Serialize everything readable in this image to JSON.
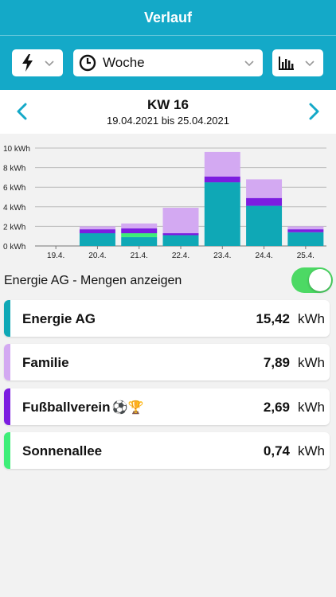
{
  "header": {
    "title": "Verlauf"
  },
  "selectors": {
    "energy_icon": "lightning-icon",
    "period_label": "Woche",
    "period_icon": "clock-icon",
    "chart_icon": "bar-chart-icon"
  },
  "week": {
    "title": "KW 16",
    "range": "19.04.2021 bis 25.04.2021"
  },
  "toggle": {
    "label": "Energie AG - Mengen anzeigen",
    "on": true
  },
  "colors": {
    "accent": "#14a9c8",
    "Energie AG": "#0fa8b6",
    "Familie": "#d3a9f2",
    "Fußballverein": "#7c1de0",
    "Sonnenallee": "#3eee78",
    "toggle_on": "#4cd964"
  },
  "cards": [
    {
      "name": "Energie AG",
      "value": "15,42",
      "unit": "kWh",
      "emoji": ""
    },
    {
      "name": "Familie",
      "value": "7,89",
      "unit": "kWh",
      "emoji": ""
    },
    {
      "name": "Fußballverein",
      "value": "2,69",
      "unit": "kWh",
      "emoji": "⚽🏆"
    },
    {
      "name": "Sonnenallee",
      "value": "0,74",
      "unit": "kWh",
      "emoji": ""
    }
  ],
  "chart_data": {
    "type": "bar",
    "stacked": true,
    "categories": [
      "19.4.",
      "20.4.",
      "21.4.",
      "22.4.",
      "23.4.",
      "24.4.",
      "25.4."
    ],
    "y_ticks": [
      "0 kWh",
      "2 kWh",
      "4 kWh",
      "6 kWh",
      "8 kWh",
      "10 kWh"
    ],
    "ylim": [
      0,
      10
    ],
    "grid": true,
    "series": [
      {
        "name": "Energie AG",
        "values": [
          0,
          1.3,
          0.9,
          1.1,
          6.5,
          4.1,
          1.4
        ]
      },
      {
        "name": "Sonnenallee",
        "values": [
          0,
          0.0,
          0.4,
          0.0,
          0.0,
          0.0,
          0.0
        ]
      },
      {
        "name": "Fußballverein",
        "values": [
          0,
          0.4,
          0.5,
          0.2,
          0.6,
          0.8,
          0.3
        ]
      },
      {
        "name": "Familie",
        "values": [
          0,
          0.3,
          0.5,
          2.6,
          2.5,
          1.9,
          0.3
        ]
      }
    ]
  }
}
